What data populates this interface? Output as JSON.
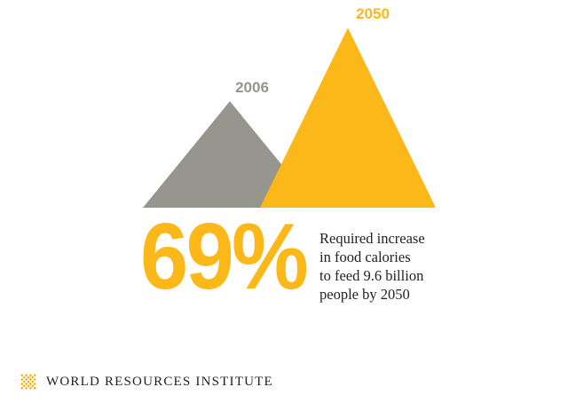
{
  "colors": {
    "grey": "#96968e",
    "yellow": "#fbb818",
    "text": "#222222",
    "logo": "#f2a900"
  },
  "headline": {
    "value": "69%",
    "caption_lines": [
      "Required increase",
      "in food calories",
      "to feed 9.6 billion",
      "people by 2050"
    ]
  },
  "chart_data": {
    "type": "area",
    "categories": [
      "2006",
      "2050"
    ],
    "values": [
      100,
      169
    ],
    "title": "",
    "xlabel": "",
    "ylabel": "",
    "ylim": [
      0,
      169
    ],
    "grid": false,
    "legend": "none"
  },
  "footer": {
    "org_name": "WORLD RESOURCES INSTITUTE",
    "logo_icon": "wri-logo-icon"
  }
}
